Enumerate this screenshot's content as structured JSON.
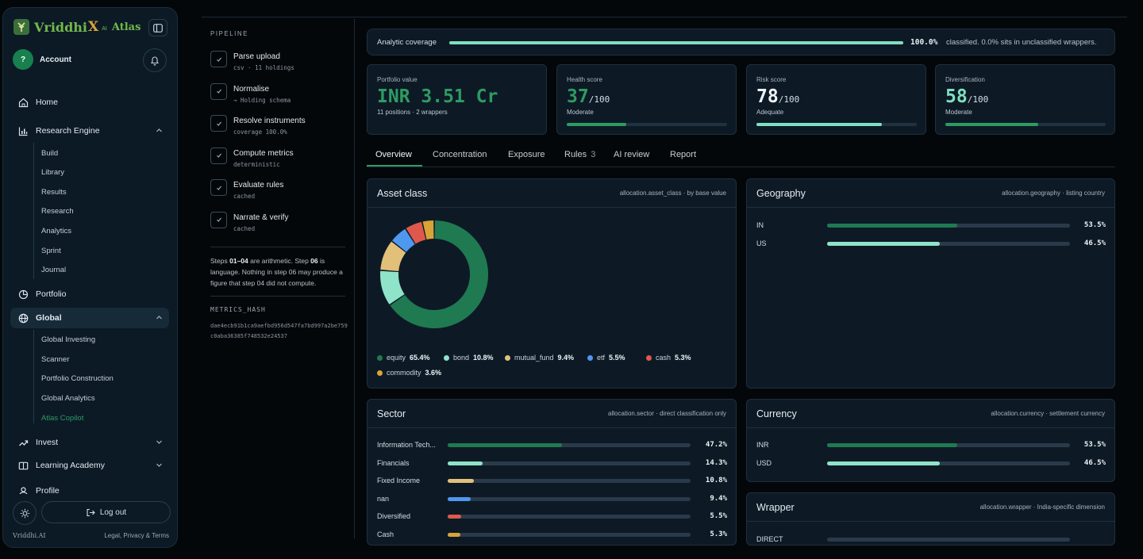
{
  "brand": {
    "name": "Vriddhi",
    "x": "X",
    "ai": "AI",
    "product": "Atlas"
  },
  "account": {
    "initial": "?",
    "label": "Account"
  },
  "nav": {
    "home": "Home",
    "research_engine": "Research Engine",
    "research_sub": [
      "Build",
      "Library",
      "Results",
      "Research",
      "Analytics",
      "Sprint",
      "Journal"
    ],
    "portfolio": "Portfolio",
    "global": "Global",
    "global_sub": [
      "Global Investing",
      "Scanner",
      "Portfolio Construction",
      "Global Analytics",
      "Atlas Copilot"
    ],
    "invest": "Invest",
    "learning": "Learning Academy",
    "profile": "Profile"
  },
  "footer": {
    "logout": "Log out",
    "brand": "Vriddhi.AI",
    "legal": "Legal, Privacy & Terms"
  },
  "pipeline": {
    "title": "PIPELINE",
    "steps": [
      {
        "name": "Parse upload",
        "sub": "csv · 11 holdings"
      },
      {
        "name": "Normalise",
        "sub": "→ Holding schema"
      },
      {
        "name": "Resolve instruments",
        "sub": "coverage 100.0%"
      },
      {
        "name": "Compute metrics",
        "sub": "deterministic"
      },
      {
        "name": "Evaluate rules",
        "sub": "cached"
      },
      {
        "name": "Narrate & verify",
        "sub": "cached"
      }
    ],
    "note_a": "Steps ",
    "note_b": "01–04",
    "note_c": " are arithmetic. Step ",
    "note_d": "06",
    "note_e": " is language. Nothing in step 06 may produce a figure that step 04 did not compute.",
    "hash_title": "METRICS_HASH",
    "hash_value": "dae4ecb91b1ca9aefbd956d547fa7bd997a2be759c0aba36385f748532e24537"
  },
  "coverage": {
    "label": "Analytic coverage",
    "fraction": 1.0,
    "pct": "100.0%",
    "note": "classified. 0.0% sits in unclassified wrappers."
  },
  "kpis": {
    "portfolio": {
      "label": "Portfolio value",
      "value": "INR 3.51 Cr",
      "sub": "11 positions · 2 wrappers"
    },
    "health": {
      "label": "Health score",
      "value": "37",
      "denom": "/100",
      "sub": "Moderate",
      "score": 37,
      "color": "#2e9b63"
    },
    "risk": {
      "label": "Risk score",
      "value": "78",
      "denom": "/100",
      "sub": "Adequate",
      "score": 78,
      "color": "#7fe0c0"
    },
    "diversification": {
      "label": "Diversification",
      "value": "58",
      "denom": "/100",
      "sub": "Moderate",
      "score": 58,
      "color": "#2e9b63"
    }
  },
  "tabs": {
    "overview": "Overview",
    "concentration": "Concentration",
    "exposure": "Exposure",
    "rules": "Rules",
    "rules_count": "3",
    "ai_review": "AI review",
    "report": "Report"
  },
  "asset_class": {
    "title": "Asset class",
    "meta": "allocation.asset_class · by base value",
    "slices": [
      {
        "name": "equity",
        "pct": "65.4%",
        "value": 65.4,
        "color": "#1f7a52"
      },
      {
        "name": "bond",
        "pct": "10.8%",
        "value": 10.8,
        "color": "#8fe3c9"
      },
      {
        "name": "mutual_fund",
        "pct": "9.4%",
        "value": 9.4,
        "color": "#e2c07a"
      },
      {
        "name": "etf",
        "pct": "5.5%",
        "value": 5.5,
        "color": "#4f98f0"
      },
      {
        "name": "cash",
        "pct": "5.3%",
        "value": 5.3,
        "color": "#e0584c"
      },
      {
        "name": "commodity",
        "pct": "3.6%",
        "value": 3.6,
        "color": "#d9a437"
      }
    ]
  },
  "geography": {
    "title": "Geography",
    "meta": "allocation.geography · listing country",
    "rows": [
      {
        "label": "IN",
        "pct": "53.5%",
        "value": 53.5,
        "color": "#1f7a52"
      },
      {
        "label": "US",
        "pct": "46.5%",
        "value": 46.5,
        "color": "#8fe3c9"
      }
    ]
  },
  "sector": {
    "title": "Sector",
    "meta": "allocation.sector · direct classification only",
    "rows": [
      {
        "label": "Information Tech...",
        "pct": "47.2%",
        "value": 47.2,
        "color": "#1f7a52"
      },
      {
        "label": "Financials",
        "pct": "14.3%",
        "value": 14.3,
        "color": "#8fe3c9"
      },
      {
        "label": "Fixed Income",
        "pct": "10.8%",
        "value": 10.8,
        "color": "#e2c07a"
      },
      {
        "label": "nan",
        "pct": "9.4%",
        "value": 9.4,
        "color": "#4f98f0"
      },
      {
        "label": "Diversified",
        "pct": "5.5%",
        "value": 5.5,
        "color": "#e0584c"
      },
      {
        "label": "Cash",
        "pct": "5.3%",
        "value": 5.3,
        "color": "#d9a437"
      }
    ]
  },
  "currency": {
    "title": "Currency",
    "meta": "allocation.currency · settlement currency",
    "rows": [
      {
        "label": "INR",
        "pct": "53.5%",
        "value": 53.5,
        "color": "#1f7a52"
      },
      {
        "label": "USD",
        "pct": "46.5%",
        "value": 46.5,
        "color": "#8fe3c9"
      }
    ]
  },
  "wrapper": {
    "title": "Wrapper",
    "meta": "allocation.wrapper · India-specific dimension",
    "first_row": "DIRECT"
  }
}
